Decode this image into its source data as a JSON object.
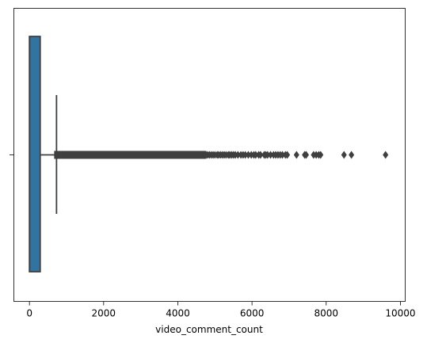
{
  "chart_data": {
    "type": "boxplot",
    "orientation": "horizontal",
    "xlabel": "video_comment_count",
    "ylabel": "",
    "xlim": [
      -420,
      10130
    ],
    "xticks": [
      0,
      2000,
      4000,
      6000,
      8000,
      10000
    ],
    "xtick_labels": [
      "0",
      "2000",
      "4000",
      "6000",
      "8000",
      "10000"
    ],
    "grid": false,
    "box": {
      "min": 0,
      "q1": 0,
      "median": 5,
      "q3": 290,
      "whisker_low": 0,
      "whisker_high": 730
    },
    "outliers": {
      "dense_range": [
        730,
        4700
      ],
      "points": [
        4720,
        4760,
        4800,
        4850,
        4900,
        4950,
        5000,
        5060,
        5100,
        5150,
        5200,
        5250,
        5300,
        5360,
        5400,
        5450,
        5500,
        5550,
        5620,
        5700,
        5760,
        5820,
        5900,
        5980,
        6050,
        6100,
        6180,
        6230,
        6330,
        6370,
        6420,
        6500,
        6580,
        6640,
        6700,
        6760,
        6820,
        6900,
        6950,
        7200,
        7420,
        7460,
        7660,
        7730,
        7800,
        7850,
        8480,
        8680,
        9600
      ]
    },
    "colors": {
      "box_fill": "#3274a1",
      "line": "#3f3f3f",
      "axes": "#000000"
    }
  }
}
